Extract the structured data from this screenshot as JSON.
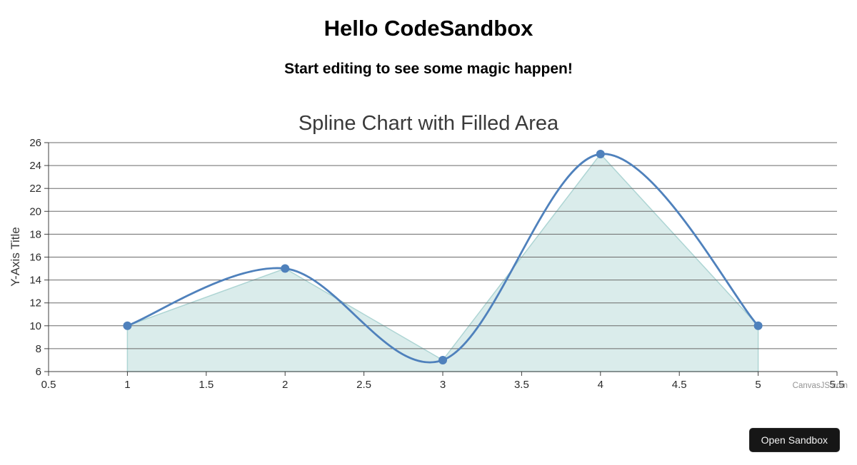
{
  "page": {
    "heading": "Hello CodeSandbox",
    "subheading": "Start editing to see some magic happen!"
  },
  "chart_data": {
    "type": "area",
    "line_style": "spline",
    "title": "Spline Chart with Filled Area",
    "xlabel": "",
    "ylabel": "Y-Axis Title",
    "x": [
      1,
      2,
      3,
      4,
      5
    ],
    "y": [
      10,
      15,
      7,
      25,
      10
    ],
    "xlim": [
      0.5,
      5.5
    ],
    "ylim": [
      6,
      26
    ],
    "x_ticks": [
      0.5,
      1,
      1.5,
      2,
      2.5,
      3,
      3.5,
      4,
      4.5,
      5,
      5.5
    ],
    "y_ticks": [
      6,
      8,
      10,
      12,
      14,
      16,
      18,
      20,
      22,
      24,
      26
    ],
    "grid": true,
    "legend": false,
    "watermark": "CanvasJS.com",
    "colors": {
      "line": "#4f81bc",
      "marker": "#4f81bc",
      "fill": "#daeceb",
      "fill_edge": "#aed5d4",
      "grid": "#6a6a6a",
      "axis": "#3f3f3f",
      "tick_label": "#2b2b2b",
      "title": "#3a3a3a",
      "watermark_text": "#949494"
    }
  },
  "footer": {
    "open_sandbox_label": "Open Sandbox"
  }
}
